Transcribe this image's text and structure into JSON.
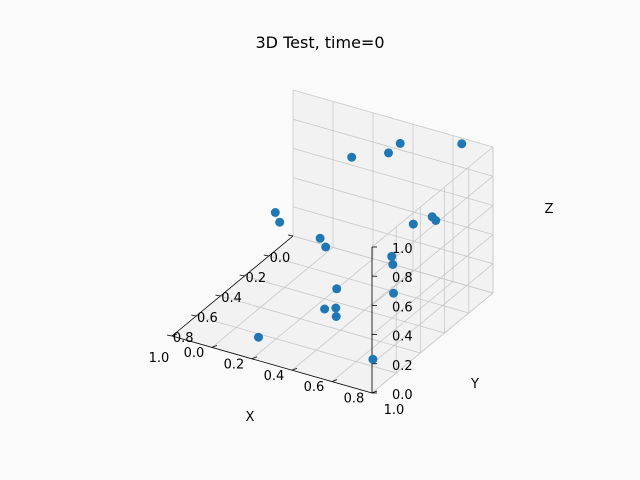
{
  "figure": {
    "title": "3D Test, time=0"
  },
  "chart_data": {
    "type": "scatter",
    "projection": "3d",
    "title": "3D Test, time=0",
    "xlabel": "X",
    "ylabel": "Y",
    "zlabel": "Z",
    "xlim": [
      0,
      1
    ],
    "ylim": [
      0,
      1
    ],
    "zlim": [
      0,
      1
    ],
    "xticks": [
      "0.0",
      "0.2",
      "0.4",
      "0.6",
      "0.8",
      "1.0"
    ],
    "yticks": [
      "0.0",
      "0.2",
      "0.4",
      "0.6",
      "0.8",
      "1.0"
    ],
    "zticks": [
      "0.0",
      "0.2",
      "0.4",
      "0.6",
      "0.8",
      "1.0"
    ],
    "grid": true,
    "marker_color": "#1f77b4",
    "points": [
      {
        "x": 0.01,
        "y": 0.85,
        "z": 0.97
      },
      {
        "x": 0.04,
        "y": 0.56,
        "z": 0.88
      },
      {
        "x": 0.07,
        "y": 0.52,
        "z": 0.82
      },
      {
        "x": 0.06,
        "y": 0.33,
        "z": 0.71
      },
      {
        "x": 0.42,
        "y": 0.95,
        "z": 0.79
      },
      {
        "x": 0.44,
        "y": 0.98,
        "z": 0.79
      },
      {
        "x": 0.46,
        "y": 0.88,
        "z": 0.74
      },
      {
        "x": 0.54,
        "y": 0.82,
        "z": 0.55
      },
      {
        "x": 0.63,
        "y": 0.88,
        "z": 0.58
      },
      {
        "x": 0.69,
        "y": 0.92,
        "z": 0.44
      },
      {
        "x": 0.46,
        "y": 0.19,
        "z": 0.55
      },
      {
        "x": 0.49,
        "y": 0.23,
        "z": 0.52
      },
      {
        "x": 0.85,
        "y": 0.65,
        "z": 0.82
      },
      {
        "x": 0.87,
        "y": 0.69,
        "z": 0.79
      },
      {
        "x": 0.91,
        "y": 0.95,
        "z": 0.15
      },
      {
        "x": 0.68,
        "y": 0.63,
        "z": 0.35
      },
      {
        "x": 0.77,
        "y": 0.68,
        "z": 0.3
      },
      {
        "x": 0.78,
        "y": 0.63,
        "z": 0.28
      },
      {
        "x": 0.8,
        "y": 0.7,
        "z": 0.27
      },
      {
        "x": 0.88,
        "y": 0.36,
        "z": 0.05
      }
    ]
  }
}
